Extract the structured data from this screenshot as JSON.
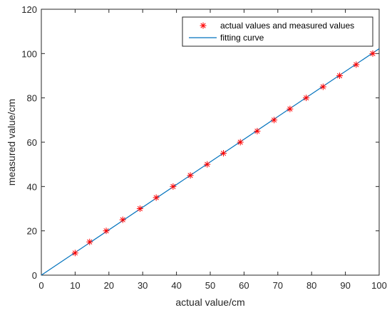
{
  "chart_data": {
    "type": "scatter",
    "xlabel": "actual value/cm",
    "ylabel": "measured value/cm",
    "xlim": [
      0,
      100
    ],
    "ylim": [
      0,
      120
    ],
    "x_ticks": [
      0,
      10,
      20,
      30,
      40,
      50,
      60,
      70,
      80,
      90,
      100
    ],
    "y_ticks": [
      0,
      20,
      40,
      60,
      80,
      100,
      120
    ],
    "grid": false,
    "legend_position": "top-right",
    "series": [
      {
        "name": "actual values and measured values",
        "kind": "markers",
        "marker": "asterisk",
        "color": "#ff0000",
        "x": [
          10,
          14.3,
          19.2,
          24.1,
          29.2,
          34,
          39,
          44.1,
          49.1,
          53.9,
          58.9,
          63.9,
          68.9,
          73.6,
          78.4,
          83.4,
          88.3,
          93.2,
          98.1
        ],
        "y": [
          10,
          15,
          20,
          25,
          30,
          35,
          40,
          45,
          50,
          55,
          60,
          65,
          70,
          75,
          80,
          85,
          90,
          95,
          100
        ]
      },
      {
        "name": "fitting curve",
        "kind": "line",
        "color": "#0072bd",
        "x": [
          0,
          100
        ],
        "y": [
          0,
          102.2
        ]
      }
    ]
  }
}
